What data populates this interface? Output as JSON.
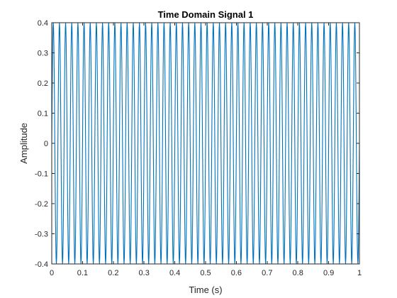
{
  "chart_data": {
    "type": "line",
    "title": "Time Domain Signal 1",
    "xlabel": "Time (s)",
    "ylabel": "Amplitude",
    "xlim": [
      0,
      1
    ],
    "ylim": [
      -0.4,
      0.4
    ],
    "x_ticks": [
      "0",
      "0.1",
      "0.2",
      "0.3",
      "0.4",
      "0.5",
      "0.6",
      "0.7",
      "0.8",
      "0.9",
      "1"
    ],
    "y_ticks": [
      "-0.4",
      "-0.3",
      "-0.2",
      "-0.1",
      "0",
      "0.1",
      "0.2",
      "0.3",
      "0.4"
    ],
    "grid": false,
    "series": [
      {
        "signal": "sine",
        "amplitude": 0.4,
        "frequency_hz": 50,
        "sample_rate_hz": 1000,
        "t_start": 0,
        "t_end": 1,
        "color": "#0072BD"
      }
    ]
  }
}
